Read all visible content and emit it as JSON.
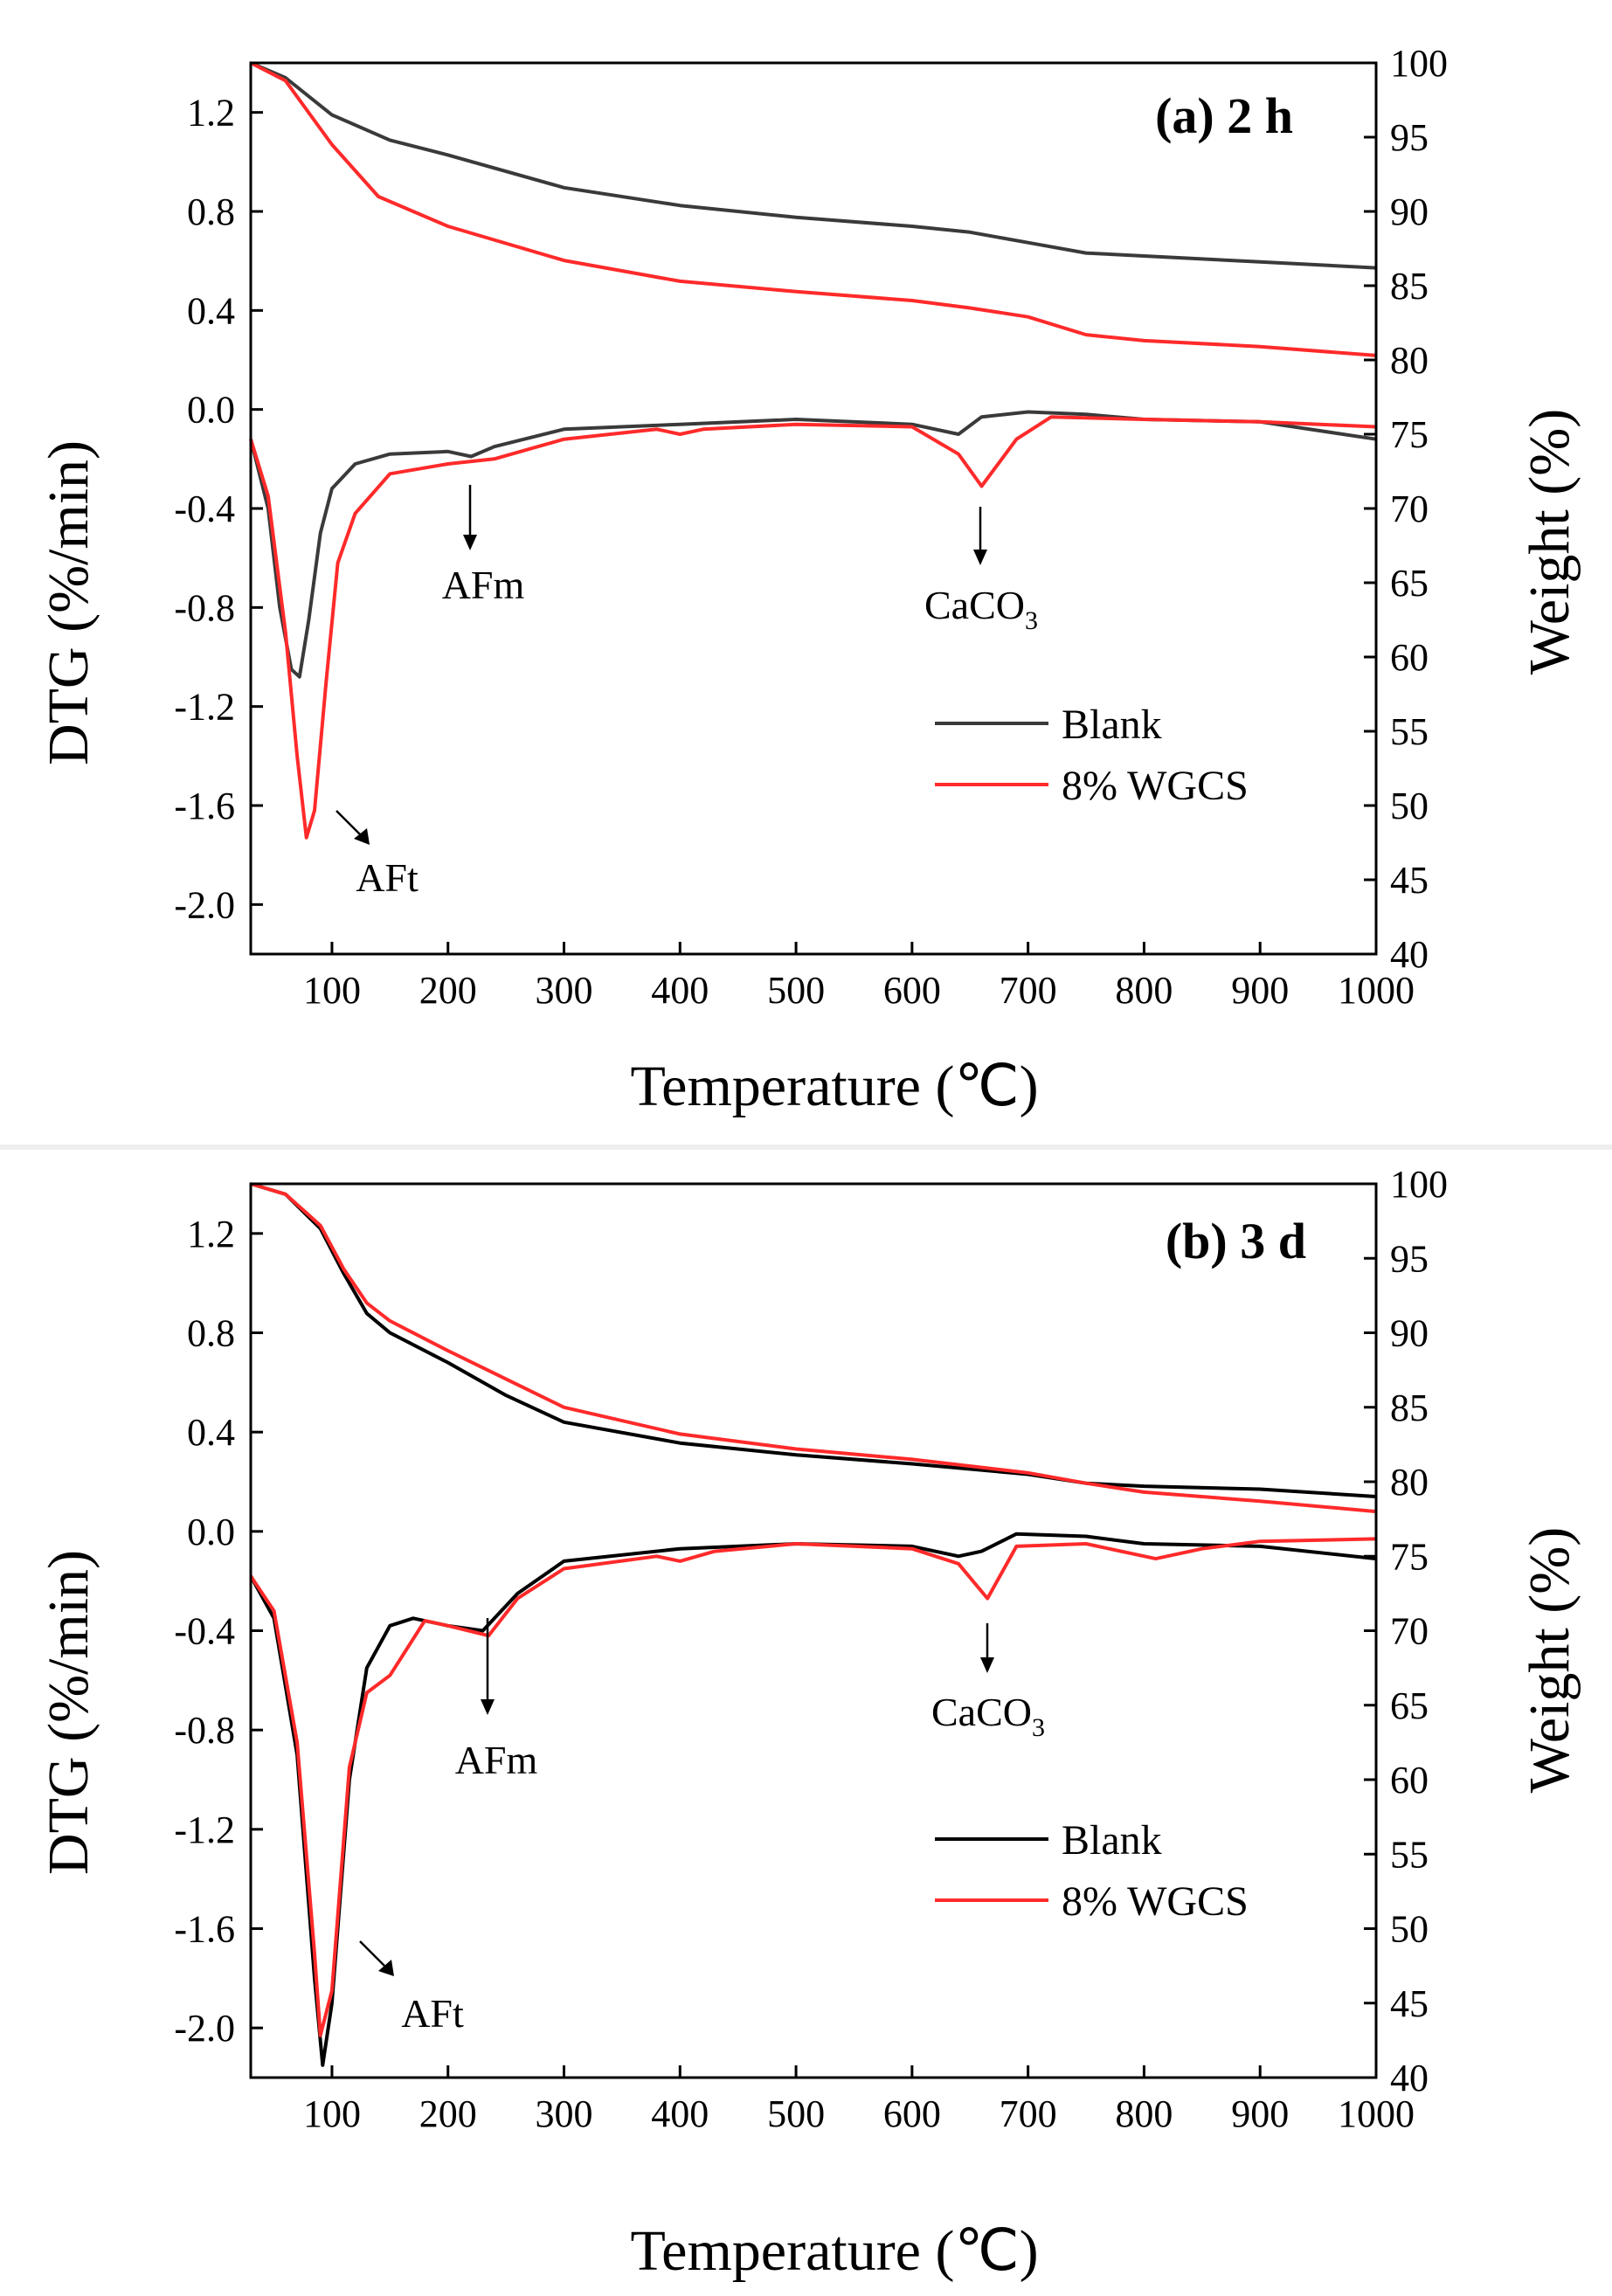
{
  "chart_data": [
    {
      "type": "line",
      "panel_label": "(a) 2 h",
      "xlabel": "Temperature (℃)",
      "ylabel_left": "DTG (%/min)",
      "ylabel_right": "Weight (%)",
      "xlim": [
        30,
        1000
      ],
      "ylim_left": [
        -2.2,
        1.4
      ],
      "ylim_right": [
        40,
        100
      ],
      "x_ticks": [
        "100",
        "200",
        "300",
        "400",
        "500",
        "600",
        "700",
        "800",
        "900",
        "1000"
      ],
      "y_left_ticks": [
        "1.2",
        "0.8",
        "0.4",
        "0.0",
        "-0.4",
        "-0.8",
        "-1.2",
        "-1.6",
        "-2.0"
      ],
      "y_right_ticks": [
        "100",
        "95",
        "90",
        "85",
        "80",
        "75",
        "70",
        "65",
        "60",
        "55",
        "50",
        "45",
        "40"
      ],
      "legend": [
        {
          "label": "Blank",
          "color": "#3a3a3a"
        },
        {
          "label": "8% WGCS",
          "color": "#ff2a2a"
        }
      ],
      "annotations": [
        {
          "text": "AFm"
        },
        {
          "text_main": "CaCO",
          "text_sub": "3"
        },
        {
          "text": "AFt"
        }
      ],
      "series": [
        {
          "name": "Blank weight",
          "axis": "right",
          "color": "#3a3a3a",
          "x": [
            30,
            60,
            100,
            150,
            200,
            300,
            400,
            500,
            600,
            650,
            700,
            750,
            800,
            900,
            1000
          ],
          "y": [
            100,
            99,
            96.5,
            94.8,
            93.8,
            91.6,
            90.4,
            89.6,
            89.0,
            88.6,
            87.9,
            87.2,
            87.0,
            86.6,
            86.2
          ]
        },
        {
          "name": "8% WGCS weight",
          "axis": "right",
          "color": "#ff2a2a",
          "x": [
            30,
            60,
            100,
            140,
            200,
            300,
            400,
            500,
            600,
            650,
            700,
            750,
            800,
            900,
            1000
          ],
          "y": [
            100,
            98.8,
            94.5,
            91.0,
            89.0,
            86.7,
            85.3,
            84.6,
            84.0,
            83.5,
            82.9,
            81.7,
            81.3,
            80.9,
            80.3
          ]
        },
        {
          "name": "Blank DTG",
          "axis": "left",
          "color": "#3a3a3a",
          "x": [
            30,
            45,
            55,
            65,
            72,
            80,
            90,
            100,
            120,
            150,
            200,
            220,
            240,
            300,
            400,
            500,
            600,
            640,
            660,
            700,
            750,
            800,
            900,
            1000
          ],
          "y": [
            -0.12,
            -0.4,
            -0.8,
            -1.05,
            -1.08,
            -0.85,
            -0.5,
            -0.32,
            -0.22,
            -0.18,
            -0.17,
            -0.19,
            -0.15,
            -0.08,
            -0.06,
            -0.04,
            -0.06,
            -0.1,
            -0.03,
            -0.01,
            -0.02,
            -0.04,
            -0.05,
            -0.12
          ]
        },
        {
          "name": "8% WGCS DTG",
          "axis": "left",
          "color": "#ff2a2a",
          "x": [
            30,
            45,
            60,
            70,
            78,
            85,
            95,
            105,
            120,
            150,
            200,
            240,
            300,
            380,
            400,
            420,
            500,
            600,
            640,
            660,
            690,
            720,
            800,
            900,
            1000
          ],
          "y": [
            -0.12,
            -0.35,
            -0.9,
            -1.4,
            -1.73,
            -1.62,
            -1.1,
            -0.62,
            -0.42,
            -0.26,
            -0.22,
            -0.2,
            -0.12,
            -0.08,
            -0.1,
            -0.08,
            -0.06,
            -0.07,
            -0.18,
            -0.31,
            -0.12,
            -0.03,
            -0.04,
            -0.05,
            -0.07
          ]
        }
      ]
    },
    {
      "type": "line",
      "panel_label": "(b) 3 d",
      "xlabel": "Temperature (℃)",
      "ylabel_left": "DTG (%/min)",
      "ylabel_right": "Weight (%)",
      "xlim": [
        30,
        1000
      ],
      "ylim_left": [
        -2.2,
        1.4
      ],
      "ylim_right": [
        40,
        100
      ],
      "x_ticks": [
        "100",
        "200",
        "300",
        "400",
        "500",
        "600",
        "700",
        "800",
        "900",
        "1000"
      ],
      "y_left_ticks": [
        "1.2",
        "0.8",
        "0.4",
        "0.0",
        "-0.4",
        "-0.8",
        "-1.2",
        "-1.6",
        "-2.0"
      ],
      "y_right_ticks": [
        "100",
        "95",
        "90",
        "85",
        "80",
        "75",
        "70",
        "65",
        "60",
        "55",
        "50",
        "45",
        "40"
      ],
      "legend": [
        {
          "label": "Blank",
          "color": "#000000"
        },
        {
          "label": "8% WGCS",
          "color": "#ff2a2a"
        }
      ],
      "annotations": [
        {
          "text": "AFm"
        },
        {
          "text_main": "CaCO",
          "text_sub": "3"
        },
        {
          "text": "AFt"
        }
      ],
      "series": [
        {
          "name": "Blank weight",
          "axis": "right",
          "color": "#000000",
          "x": [
            30,
            60,
            90,
            110,
            130,
            150,
            200,
            250,
            300,
            400,
            500,
            600,
            700,
            750,
            800,
            900,
            1000
          ],
          "y": [
            100,
            99.3,
            97.0,
            94.0,
            91.3,
            90.0,
            88.0,
            85.8,
            84.0,
            82.6,
            81.8,
            81.2,
            80.5,
            79.9,
            79.7,
            79.5,
            79.0
          ]
        },
        {
          "name": "8% WGCS weight",
          "axis": "right",
          "color": "#ff2a2a",
          "x": [
            30,
            60,
            90,
            110,
            130,
            150,
            200,
            250,
            300,
            400,
            500,
            600,
            700,
            750,
            800,
            900,
            1000
          ],
          "y": [
            100,
            99.3,
            97.2,
            94.3,
            92.0,
            90.8,
            88.8,
            86.9,
            85.0,
            83.2,
            82.2,
            81.5,
            80.6,
            79.9,
            79.3,
            78.7,
            78.0
          ]
        },
        {
          "name": "Blank DTG",
          "axis": "left",
          "color": "#000000",
          "x": [
            30,
            50,
            70,
            85,
            92,
            100,
            115,
            130,
            150,
            170,
            200,
            230,
            260,
            300,
            400,
            500,
            600,
            640,
            660,
            690,
            750,
            800,
            900,
            1000
          ],
          "y": [
            -0.18,
            -0.35,
            -0.9,
            -1.8,
            -2.15,
            -1.9,
            -1.0,
            -0.55,
            -0.38,
            -0.35,
            -0.38,
            -0.4,
            -0.25,
            -0.12,
            -0.07,
            -0.05,
            -0.06,
            -0.1,
            -0.08,
            -0.01,
            -0.02,
            -0.05,
            -0.06,
            -0.11
          ]
        },
        {
          "name": "8% WGCS DTG",
          "axis": "left",
          "color": "#ff2a2a",
          "x": [
            30,
            50,
            70,
            85,
            90,
            100,
            115,
            130,
            150,
            180,
            200,
            235,
            260,
            300,
            380,
            400,
            430,
            500,
            600,
            640,
            665,
            690,
            750,
            810,
            850,
            900,
            1000
          ],
          "y": [
            -0.18,
            -0.32,
            -0.85,
            -1.7,
            -2.03,
            -1.85,
            -0.95,
            -0.65,
            -0.58,
            -0.36,
            -0.38,
            -0.42,
            -0.27,
            -0.15,
            -0.1,
            -0.12,
            -0.08,
            -0.05,
            -0.07,
            -0.13,
            -0.27,
            -0.06,
            -0.05,
            -0.11,
            -0.07,
            -0.04,
            -0.03
          ]
        }
      ]
    }
  ]
}
